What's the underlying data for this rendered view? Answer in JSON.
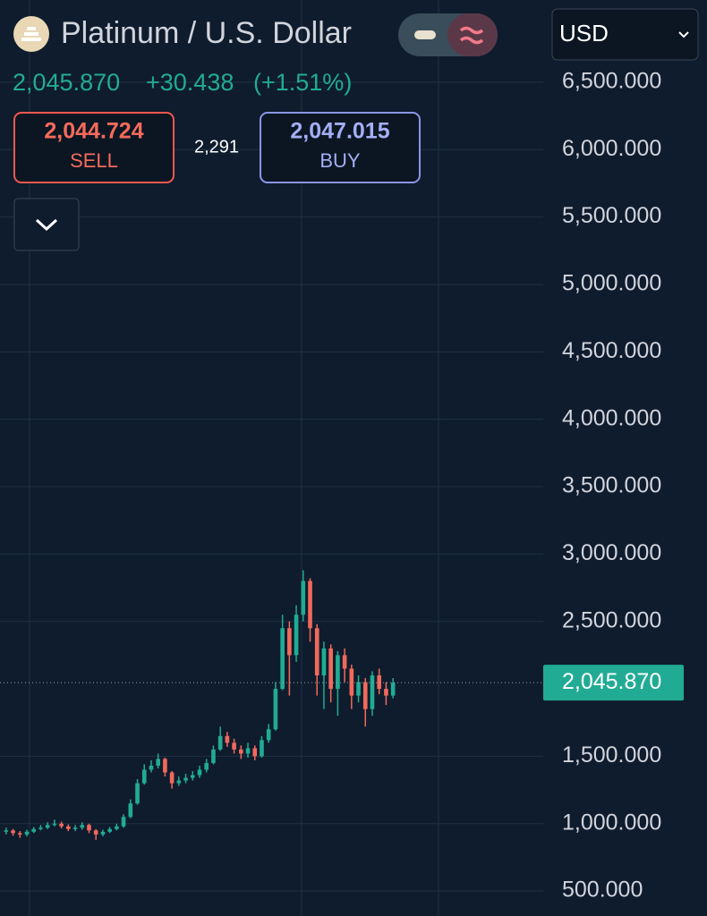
{
  "header": {
    "title": "Platinum / U.S. Dollar",
    "currency": "USD",
    "price": "2,045.870",
    "change": "+30.438",
    "change_pct": "(+1.51%)"
  },
  "trade_panel": {
    "sell_price": "2,044.724",
    "sell_label": "SELL",
    "spread": "2,291",
    "buy_price": "2,047.015",
    "buy_label": "BUY"
  },
  "chart_data": {
    "type": "candlestick",
    "ylim": [
      315,
      7110
    ],
    "yticks": [
      {
        "value": 6500,
        "label": "6,500.000"
      },
      {
        "value": 6000,
        "label": "6,000.000"
      },
      {
        "value": 5500,
        "label": "5,500.000"
      },
      {
        "value": 5000,
        "label": "5,000.000"
      },
      {
        "value": 4500,
        "label": "4,500.000"
      },
      {
        "value": 4000,
        "label": "4,000.000"
      },
      {
        "value": 3500,
        "label": "3,500.000"
      },
      {
        "value": 3000,
        "label": "3,000.000"
      },
      {
        "value": 2500,
        "label": "2,500.000"
      },
      {
        "value": 1500,
        "label": "1,500.000"
      },
      {
        "value": 1000,
        "label": "1,000.000"
      },
      {
        "value": 500,
        "label": "500.000"
      }
    ],
    "grid": true,
    "up_color": "#22ab94",
    "down_color": "#f06a5c",
    "last_price": {
      "value": 2045.87,
      "label": "2,045.870"
    },
    "open": [
      940,
      950,
      930,
      920,
      940,
      960,
      970,
      990,
      1000,
      980,
      960,
      970,
      990,
      950,
      920,
      940,
      960,
      980,
      1050,
      1150,
      1300,
      1400,
      1430,
      1480,
      1380,
      1300,
      1320,
      1340,
      1360,
      1400,
      1450,
      1550,
      1650,
      1600,
      1550,
      1520,
      1560,
      1500,
      1620,
      1700,
      2000,
      2450,
      2250,
      2550,
      2800,
      2450,
      2100,
      2300,
      2000,
      2250,
      2150,
      1950,
      2050,
      1850,
      2100,
      2000,
      1950
    ],
    "high": [
      970,
      960,
      945,
      955,
      975,
      990,
      1010,
      1030,
      1015,
      995,
      990,
      1010,
      1000,
      960,
      955,
      975,
      1000,
      1070,
      1180,
      1330,
      1440,
      1470,
      1520,
      1490,
      1390,
      1350,
      1370,
      1390,
      1430,
      1480,
      1580,
      1720,
      1680,
      1630,
      1580,
      1600,
      1580,
      1650,
      1740,
      2050,
      2550,
      2500,
      2620,
      2880,
      2820,
      2480,
      2350,
      2330,
      2280,
      2300,
      2180,
      2100,
      2080,
      2130,
      2150,
      2050,
      2080
    ],
    "low": [
      920,
      910,
      895,
      905,
      930,
      950,
      960,
      980,
      965,
      945,
      945,
      955,
      930,
      880,
      905,
      930,
      950,
      970,
      1040,
      1140,
      1290,
      1380,
      1410,
      1350,
      1260,
      1280,
      1300,
      1320,
      1340,
      1380,
      1440,
      1540,
      1570,
      1520,
      1480,
      1490,
      1470,
      1490,
      1600,
      1690,
      1990,
      1950,
      2200,
      2500,
      2350,
      1950,
      1850,
      1900,
      1800,
      2050,
      1850,
      1900,
      1720,
      1800,
      1960,
      1880,
      1930
    ],
    "close": [
      950,
      930,
      920,
      940,
      960,
      970,
      990,
      1000,
      980,
      960,
      970,
      990,
      950,
      920,
      940,
      960,
      980,
      1050,
      1150,
      1300,
      1400,
      1430,
      1480,
      1380,
      1300,
      1320,
      1340,
      1360,
      1400,
      1450,
      1550,
      1650,
      1600,
      1550,
      1520,
      1560,
      1500,
      1620,
      1700,
      2000,
      2450,
      2250,
      2550,
      2800,
      2450,
      2100,
      2300,
      2000,
      2250,
      2150,
      1950,
      2050,
      1850,
      2100,
      2000,
      1950,
      2045.87
    ]
  }
}
